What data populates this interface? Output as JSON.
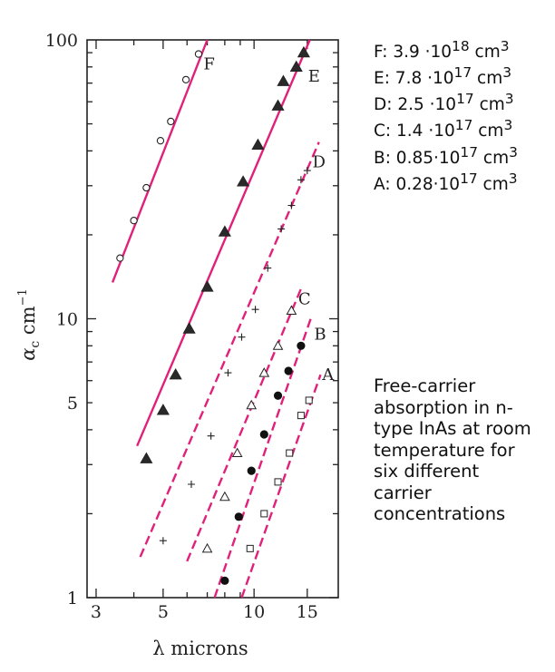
{
  "chart_data": {
    "type": "scatter",
    "x_scale": "log",
    "y_scale": "log",
    "xlim": [
      2.8,
      19
    ],
    "ylim": [
      1,
      100
    ],
    "x_ticks": [
      {
        "value": 3,
        "label": "3"
      },
      {
        "value": 5,
        "label": "5"
      },
      {
        "value": 10,
        "label": "10"
      },
      {
        "value": 15,
        "label": "15"
      }
    ],
    "y_ticks": [
      {
        "value": 1,
        "label": "1"
      },
      {
        "value": 5,
        "label": "5"
      },
      {
        "value": 10,
        "label": "10"
      },
      {
        "value": 100,
        "label": "100"
      }
    ],
    "xlabel": "λ microns",
    "ylabel_main": "α",
    "ylabel_sub": "c",
    "ylabel_unit": " cm",
    "ylabel_sup": "−1",
    "line_color": "#e0207a",
    "series": [
      {
        "name": "F",
        "marker": "circle-open",
        "dash": "",
        "line": [
          [
            3.4,
            13.5
          ],
          [
            7.0,
            100
          ]
        ],
        "points": [
          [
            3.6,
            16.5
          ],
          [
            4.0,
            22.5
          ],
          [
            4.4,
            29.5
          ],
          [
            4.9,
            43.5
          ],
          [
            5.3,
            51
          ],
          [
            5.95,
            72
          ],
          [
            6.55,
            89
          ]
        ],
        "label_at": [
          6.8,
          82
        ]
      },
      {
        "name": "E",
        "marker": "triangle-filled",
        "dash": "",
        "line": [
          [
            4.1,
            3.5
          ],
          [
            15.3,
            100
          ]
        ],
        "points": [
          [
            4.4,
            3.15
          ],
          [
            5.0,
            4.7
          ],
          [
            5.5,
            6.3
          ],
          [
            6.1,
            9.2
          ],
          [
            7.0,
            13
          ],
          [
            8.0,
            20.5
          ],
          [
            9.2,
            31
          ],
          [
            10.3,
            42
          ],
          [
            12.0,
            58
          ],
          [
            12.5,
            71
          ],
          [
            13.8,
            80
          ],
          [
            14.6,
            90
          ]
        ],
        "label_at": [
          15.1,
          74
        ]
      },
      {
        "name": "D",
        "marker": "plus",
        "dash": "10 5",
        "line": [
          [
            4.2,
            1.4
          ],
          [
            16.4,
            43
          ]
        ],
        "points": [
          [
            5.0,
            1.6
          ],
          [
            6.2,
            2.55
          ],
          [
            7.2,
            3.8
          ],
          [
            8.2,
            6.4
          ],
          [
            9.1,
            8.6
          ],
          [
            10.1,
            10.8
          ],
          [
            11.1,
            15.2
          ],
          [
            12.3,
            21
          ],
          [
            13.3,
            25.5
          ],
          [
            14.3,
            31.5
          ],
          [
            15.0,
            34
          ]
        ],
        "label_at": [
          15.6,
          36.5
        ]
      },
      {
        "name": "C",
        "marker": "triangle-open",
        "dash": "10 5",
        "line": [
          [
            6.0,
            1.35
          ],
          [
            14.3,
            12.8
          ]
        ],
        "points": [
          [
            7.0,
            1.5
          ],
          [
            8.0,
            2.3
          ],
          [
            8.8,
            3.3
          ],
          [
            9.8,
            4.9
          ],
          [
            10.8,
            6.4
          ],
          [
            12.0,
            8
          ],
          [
            13.3,
            10.7
          ]
        ],
        "label_at": [
          14.0,
          11.8
        ]
      },
      {
        "name": "B",
        "marker": "circle-filled",
        "dash": "10 5",
        "line": [
          [
            7.4,
            1
          ],
          [
            15.4,
            10
          ]
        ],
        "points": [
          [
            8.0,
            1.15
          ],
          [
            8.9,
            1.95
          ],
          [
            9.8,
            2.85
          ],
          [
            10.8,
            3.85
          ],
          [
            12.0,
            5.3
          ],
          [
            13.0,
            6.5
          ],
          [
            14.3,
            8
          ]
        ],
        "label_at": [
          15.8,
          8.8
        ]
      },
      {
        "name": "A",
        "marker": "square-open",
        "dash": "10 5",
        "line": [
          [
            9.1,
            1
          ],
          [
            16.6,
            6.3
          ]
        ],
        "points": [
          [
            9.7,
            1.5
          ],
          [
            10.8,
            2.0
          ],
          [
            12.0,
            2.6
          ],
          [
            13.1,
            3.3
          ],
          [
            14.3,
            4.5
          ],
          [
            15.2,
            5.1
          ]
        ],
        "label_at": [
          16.8,
          6.3
        ]
      }
    ]
  },
  "legend": [
    {
      "prefix": "F: 3.9 ·10",
      "exp": "18",
      "unit": " cm",
      "unit_exp": "3"
    },
    {
      "prefix": "E: 7.8 ·10",
      "exp": "17",
      "unit": " cm",
      "unit_exp": "3"
    },
    {
      "prefix": "D: 2.5 ·10",
      "exp": "17",
      "unit": " cm",
      "unit_exp": "3"
    },
    {
      "prefix": "C: 1.4 ·10",
      "exp": "17",
      "unit": " cm",
      "unit_exp": "3"
    },
    {
      "prefix": "B: 0.85·10",
      "exp": "17",
      "unit": " cm",
      "unit_exp": "3"
    },
    {
      "prefix": "A: 0.28·10",
      "exp": "17",
      "unit": " cm",
      "unit_exp": "3"
    }
  ],
  "caption": "Free-carrier absorption in n-type InAs at room temperature for six different carrier concentrations"
}
